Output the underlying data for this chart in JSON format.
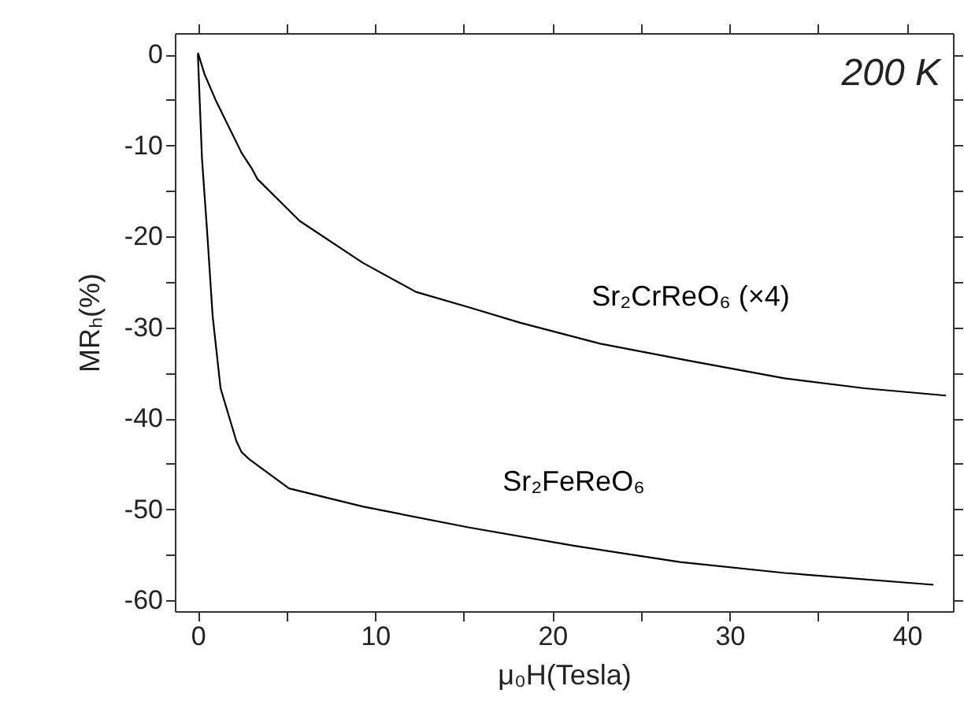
{
  "chart_data": {
    "type": "line",
    "xlabel": "μ₀H(Tesla)",
    "ylabel": "MRₕ(%)",
    "annotations": [
      "200 K"
    ],
    "xlim": [
      -1.3,
      42.6
    ],
    "ylim": [
      -61.2,
      2.35
    ],
    "xticks": [
      0,
      {
        "value": 5,
        "label": null
      },
      10,
      {
        "value": 15,
        "label": null
      },
      20,
      {
        "value": 25,
        "label": null
      },
      30,
      {
        "value": 35,
        "label": null
      },
      40
    ],
    "yticks": [
      0,
      {
        "value": -5,
        "label": null
      },
      -10,
      {
        "value": -15,
        "label": null
      },
      -20,
      {
        "value": -25,
        "label": null
      },
      -30,
      {
        "value": -35,
        "label": null
      },
      -40,
      {
        "value": -45,
        "label": null
      },
      -50,
      {
        "value": -55,
        "label": null
      },
      -60
    ],
    "grid": false,
    "marker": "none",
    "line_style": "solid",
    "series": [
      {
        "name": "Sr₂CrReO₆ (×4)",
        "color": "#000000",
        "x": [
          0,
          0.38,
          1.0,
          2.46,
          3.06,
          3.36,
          5.74,
          9.3,
          12.3,
          15.3,
          18.2,
          22.7,
          27.8,
          33.1,
          37.6,
          42.2
        ],
        "values": [
          0.2,
          -2.2,
          -5.0,
          -10.8,
          -12.6,
          -13.7,
          -18.3,
          -22.9,
          -26.1,
          -27.8,
          -29.5,
          -31.8,
          -33.7,
          -35.6,
          -36.7,
          -37.5
        ]
      },
      {
        "name": "Sr₂FeReO₆",
        "color": "#000000",
        "x": [
          0,
          0.23,
          0.54,
          0.83,
          1.28,
          2.17,
          2.46,
          2.9,
          5.14,
          9.3,
          15.3,
          21.2,
          27.2,
          33.1,
          41.5
        ],
        "values": [
          0,
          -11.4,
          -20.0,
          -28.7,
          -36.7,
          -42.5,
          -43.7,
          -44.5,
          -47.7,
          -49.7,
          -52.0,
          -54.0,
          -55.8,
          -57.0,
          -58.3
        ]
      }
    ]
  }
}
